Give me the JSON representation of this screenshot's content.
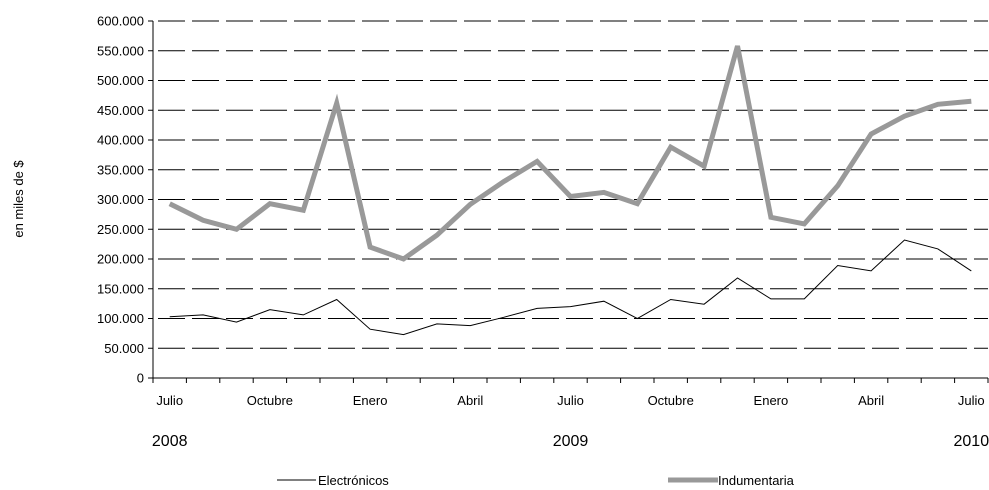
{
  "chart_data": {
    "type": "line",
    "ylabel": "en miles de $",
    "ylim": [
      0,
      600000
    ],
    "yticks": [
      "0",
      "50.000",
      "100.000",
      "150.000",
      "200.000",
      "250.000",
      "300.000",
      "350.000",
      "400.000",
      "450.000",
      "500.000",
      "550.000",
      "600.000"
    ],
    "grid": true,
    "legend_position": "bottom",
    "x_tick_labels": [
      {
        "index": 0,
        "label": "Julio"
      },
      {
        "index": 3,
        "label": "Octubre"
      },
      {
        "index": 6,
        "label": "Enero"
      },
      {
        "index": 9,
        "label": "Abril"
      },
      {
        "index": 12,
        "label": "Julio"
      },
      {
        "index": 15,
        "label": "Octubre"
      },
      {
        "index": 18,
        "label": "Enero"
      },
      {
        "index": 21,
        "label": "Abril"
      },
      {
        "index": 24,
        "label": "Julio"
      }
    ],
    "year_labels": [
      {
        "index": 0,
        "label": "2008"
      },
      {
        "index": 12,
        "label": "2009"
      },
      {
        "index": 24,
        "label": "2010"
      }
    ],
    "x": [
      "2008-07",
      "2008-08",
      "2008-09",
      "2008-10",
      "2008-11",
      "2008-12",
      "2009-01",
      "2009-02",
      "2009-03",
      "2009-04",
      "2009-05",
      "2009-06",
      "2009-07",
      "2009-08",
      "2009-09",
      "2009-10",
      "2009-11",
      "2009-12",
      "2010-01",
      "2010-02",
      "2010-03",
      "2010-04",
      "2010-05",
      "2010-06",
      "2010-07"
    ],
    "series": [
      {
        "name": "Electrónicos",
        "color": "#000000",
        "values": [
          103000,
          106000,
          94000,
          115000,
          106000,
          132000,
          82000,
          73000,
          91000,
          88000,
          102000,
          117000,
          120000,
          129000,
          100000,
          132000,
          124000,
          168000,
          133000,
          133000,
          189000,
          180000,
          232000,
          217000,
          180000
        ]
      },
      {
        "name": "Indumentaria",
        "color": "#999999",
        "values": [
          293000,
          265000,
          250000,
          293000,
          282000,
          462000,
          220000,
          200000,
          240000,
          292000,
          330000,
          364000,
          305000,
          312000,
          293000,
          388000,
          356000,
          558000,
          270000,
          259000,
          323000,
          410000,
          440000,
          460000,
          465000
        ]
      }
    ]
  }
}
